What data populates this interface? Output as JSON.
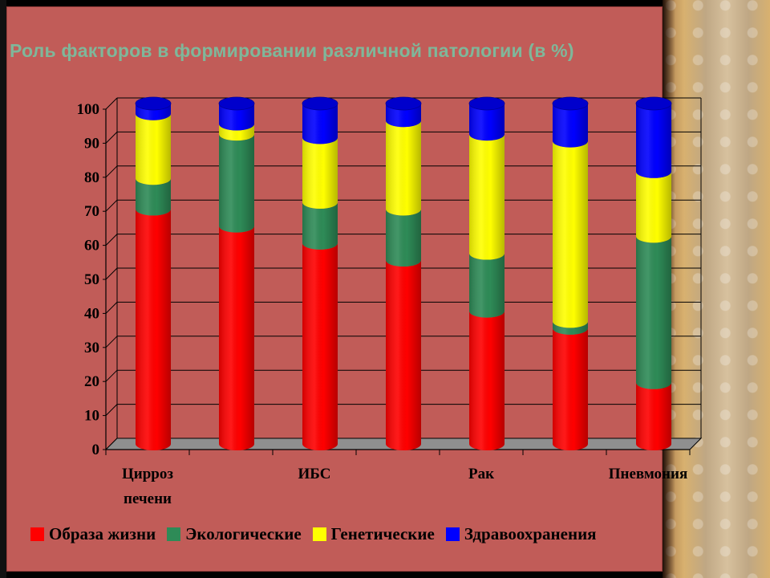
{
  "slide": {
    "title": "Роль факторов в формировании различной патологии (в %)"
  },
  "chart_data": {
    "type": "bar",
    "stacked": true,
    "categories": [
      "Цирроз печени",
      "",
      "ИБС",
      "",
      "Рак",
      "",
      "Пневмония"
    ],
    "category_labels": {
      "c0_line1": "Цирроз",
      "c0_line2": "печени",
      "c2": "ИБС",
      "c4": "Рак",
      "c6": "Пневмония"
    },
    "series": [
      {
        "name": "Образа жизни",
        "color": "#ff0000",
        "values": [
          69,
          64,
          59,
          54,
          39,
          34,
          18
        ]
      },
      {
        "name": "Экологические",
        "color": "#2e8b57",
        "values": [
          9,
          27,
          12,
          15,
          17,
          2,
          43
        ]
      },
      {
        "name": "Генетические",
        "color": "#ffff00",
        "values": [
          19,
          3,
          19,
          26,
          35,
          53,
          19
        ]
      },
      {
        "name": "Здравоохранения",
        "color": "#0000ff",
        "values": [
          3,
          6,
          10,
          5,
          9,
          11,
          20
        ]
      }
    ],
    "y_ticks": [
      "0",
      "10",
      "20",
      "30",
      "40",
      "50",
      "60",
      "70",
      "80",
      "90",
      "100"
    ],
    "ylim": [
      0,
      100
    ],
    "grid": true,
    "legend": "bottom"
  }
}
